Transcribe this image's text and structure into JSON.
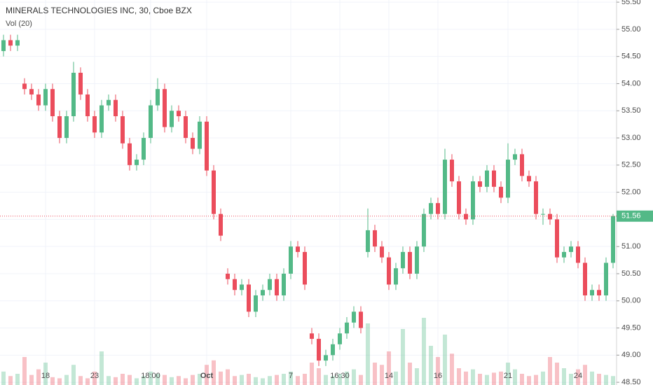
{
  "chart_data": {
    "type": "candlestick",
    "title": "MINERALS TECHNOLOGIES INC, 30, Cboe BZX",
    "volume_title": "Vol (20)",
    "up_color": "#53b987",
    "down_color": "#eb4d5c",
    "ylim": [
      48.45,
      55.54
    ],
    "yticks": [
      {
        "value": 48.5,
        "label": "48.50"
      },
      {
        "value": 49,
        "label": "49.00"
      },
      {
        "value": 49.5,
        "label": "49.50"
      },
      {
        "value": 50,
        "label": "50.00"
      },
      {
        "value": 50.5,
        "label": "50.50"
      },
      {
        "value": 51,
        "label": "51.00"
      },
      {
        "value": 51.5,
        "label": "51.50"
      },
      {
        "value": 52,
        "label": "52.00"
      },
      {
        "value": 52.5,
        "label": "52.50"
      },
      {
        "value": 53,
        "label": "53.00"
      },
      {
        "value": 53.5,
        "label": "53.50"
      },
      {
        "value": 54,
        "label": "54.00"
      },
      {
        "value": 54.5,
        "label": "54.50"
      },
      {
        "value": 55,
        "label": "55.00"
      },
      {
        "value": 55.5,
        "label": "55.50"
      }
    ],
    "grid": true,
    "last_price": {
      "value": 51.56,
      "label": "51.56"
    },
    "categories": [
      null,
      null,
      null,
      null,
      null,
      null,
      "18",
      null,
      null,
      null,
      null,
      null,
      null,
      "23",
      null,
      null,
      null,
      null,
      null,
      null,
      null,
      "18:00",
      null,
      null,
      null,
      null,
      null,
      null,
      null,
      "Oct",
      null,
      null,
      null,
      null,
      null,
      null,
      null,
      null,
      null,
      null,
      null,
      "7",
      null,
      null,
      null,
      null,
      null,
      null,
      "16:30",
      null,
      null,
      null,
      null,
      null,
      null,
      "14",
      null,
      null,
      null,
      null,
      null,
      null,
      "16",
      null,
      null,
      null,
      null,
      null,
      null,
      null,
      null,
      null,
      "21",
      null,
      null,
      null,
      null,
      null,
      null,
      null,
      null,
      null,
      "24",
      null,
      null,
      null,
      null,
      null
    ],
    "open": [
      54.6,
      54.8,
      54.7,
      54.0,
      53.9,
      53.8,
      53.6,
      53.9,
      53.4,
      53.0,
      53.4,
      54.2,
      53.8,
      53.4,
      53.1,
      53.6,
      53.7,
      53.4,
      52.9,
      52.5,
      52.6,
      53.0,
      53.6,
      53.9,
      53.2,
      53.5,
      53.4,
      53.0,
      52.8,
      53.3,
      52.4,
      51.6,
      50.5,
      50.4,
      50.2,
      50.3,
      49.8,
      50.1,
      50.2,
      50.4,
      50.1,
      50.5,
      51.0,
      50.9,
      49.4,
      49.3,
      48.9,
      49.0,
      49.2,
      49.4,
      49.6,
      49.8,
      50.9,
      51.3,
      51.0,
      50.8,
      50.3,
      50.6,
      50.9,
      50.5,
      51.0,
      51.6,
      51.8,
      51.6,
      52.6,
      52.2,
      51.6,
      51.5,
      52.2,
      52.1,
      52.4,
      52.1,
      51.9,
      52.6,
      52.7,
      52.3,
      52.2,
      51.6,
      51.6,
      51.5,
      50.8,
      50.9,
      51.0,
      50.7,
      50.1,
      50.2,
      50.1,
      50.7
    ],
    "high": [
      54.9,
      54.9,
      54.9,
      54.1,
      54.0,
      53.9,
      54.0,
      54.0,
      53.5,
      53.5,
      54.4,
      54.3,
      53.9,
      53.5,
      53.7,
      53.8,
      53.8,
      53.5,
      53.0,
      52.7,
      53.1,
      53.7,
      54.1,
      54.0,
      53.6,
      53.6,
      53.5,
      53.1,
      53.4,
      53.4,
      52.5,
      51.7,
      50.6,
      50.5,
      50.4,
      50.4,
      50.2,
      50.3,
      50.5,
      50.5,
      50.6,
      51.1,
      51.1,
      51.0,
      49.5,
      49.4,
      49.1,
      49.3,
      49.5,
      49.7,
      49.9,
      49.9,
      51.7,
      51.4,
      51.1,
      50.9,
      50.7,
      51.0,
      51.0,
      51.1,
      51.7,
      51.9,
      51.9,
      52.8,
      52.7,
      52.3,
      51.7,
      52.3,
      52.3,
      52.5,
      52.5,
      52.2,
      52.9,
      52.8,
      52.8,
      52.4,
      52.3,
      51.7,
      51.7,
      51.6,
      51.0,
      51.1,
      51.1,
      50.8,
      50.3,
      50.3,
      50.8,
      51.6
    ],
    "low": [
      54.5,
      54.6,
      54.6,
      53.8,
      53.7,
      53.5,
      53.5,
      53.3,
      52.9,
      52.9,
      53.3,
      53.7,
      53.3,
      53.0,
      53.0,
      53.5,
      53.3,
      52.8,
      52.4,
      52.4,
      52.5,
      52.9,
      53.5,
      53.1,
      53.1,
      53.3,
      52.9,
      52.7,
      52.7,
      52.3,
      51.5,
      51.1,
      50.3,
      50.1,
      50.1,
      49.7,
      49.7,
      50.0,
      50.1,
      50.0,
      50.0,
      50.4,
      50.8,
      50.2,
      49.2,
      48.8,
      48.8,
      48.9,
      49.1,
      49.3,
      49.5,
      49.4,
      50.8,
      50.9,
      50.7,
      50.2,
      50.2,
      50.5,
      50.4,
      50.4,
      50.9,
      51.5,
      51.5,
      51.5,
      52.1,
      51.5,
      51.4,
      51.4,
      52.0,
      52.0,
      52.0,
      51.8,
      51.8,
      52.5,
      52.2,
      52.1,
      51.5,
      51.4,
      51.4,
      50.7,
      50.7,
      50.8,
      50.6,
      50.0,
      50.0,
      50.0,
      50.0,
      50.6
    ],
    "close": [
      54.8,
      54.7,
      54.8,
      53.9,
      53.8,
      53.6,
      53.9,
      53.4,
      53.0,
      53.4,
      54.2,
      53.8,
      53.4,
      53.1,
      53.6,
      53.7,
      53.4,
      52.9,
      52.5,
      52.6,
      53.0,
      53.6,
      53.9,
      53.2,
      53.5,
      53.4,
      53.0,
      52.8,
      53.3,
      52.4,
      51.6,
      51.2,
      50.4,
      50.2,
      50.3,
      49.8,
      50.1,
      50.2,
      50.4,
      50.1,
      50.5,
      51.0,
      50.9,
      50.3,
      49.3,
      48.9,
      49.0,
      49.2,
      49.4,
      49.6,
      49.8,
      49.5,
      51.3,
      51.0,
      50.8,
      50.3,
      50.6,
      50.9,
      50.5,
      51.0,
      51.6,
      51.8,
      51.6,
      52.6,
      52.2,
      51.6,
      51.5,
      52.2,
      52.1,
      52.4,
      52.1,
      51.9,
      52.6,
      52.7,
      52.3,
      52.2,
      51.6,
      51.6,
      51.5,
      50.8,
      50.9,
      51.0,
      50.7,
      50.1,
      50.2,
      50.1,
      50.7,
      51.56
    ],
    "volume_ylim": [
      0,
      100
    ],
    "volume": [
      12,
      8,
      10,
      25,
      9,
      14,
      20,
      7,
      6,
      9,
      18,
      8,
      6,
      12,
      30,
      8,
      7,
      10,
      9,
      6,
      8,
      12,
      10,
      9,
      7,
      8,
      6,
      9,
      10,
      18,
      22,
      12,
      14,
      8,
      9,
      10,
      7,
      6,
      8,
      9,
      10,
      12,
      8,
      10,
      20,
      15,
      9,
      8,
      10,
      12,
      14,
      9,
      55,
      20,
      18,
      30,
      12,
      50,
      20,
      15,
      60,
      35,
      25,
      45,
      28,
      15,
      12,
      14,
      10,
      9,
      11,
      12,
      20,
      14,
      10,
      8,
      9,
      12,
      25,
      20,
      15,
      10,
      14,
      18,
      12,
      10,
      9,
      8
    ]
  }
}
